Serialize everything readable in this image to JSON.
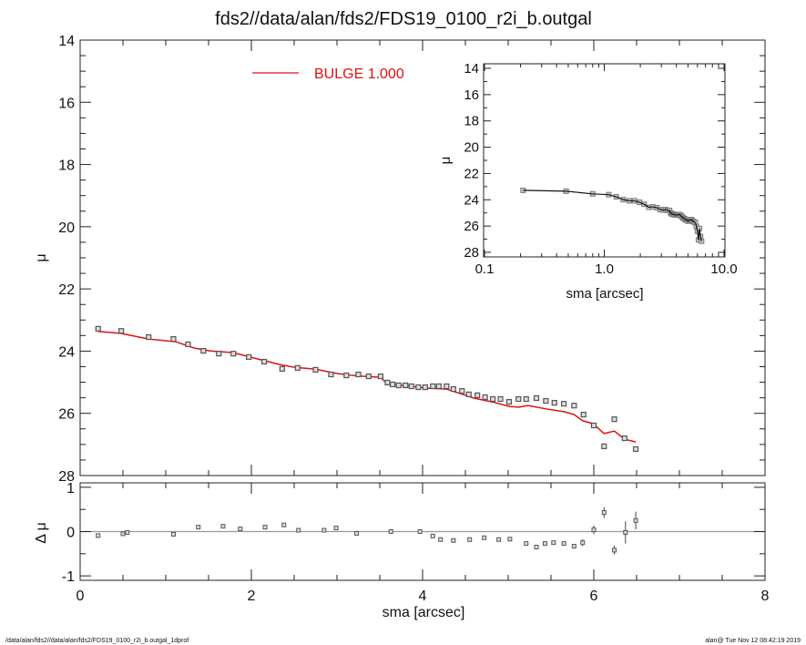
{
  "title": "fds2//data/alan/fds2/FDS19_0100_r2i_b.outgal",
  "footer_left": "/data/alan/fds2//data/alan/fds2/FDS19_0100_r2i_b.outgal_1dprof",
  "footer_right": "alan@  Tue Nov 12 08:42:19 2019",
  "colors": {
    "model": "#e01010",
    "data": "#555555",
    "axes": "#222222",
    "zero_line": "#999999"
  },
  "chart_data": [
    {
      "type": "scatter",
      "panel": "main",
      "xlabel": "sma [arcsec]",
      "ylabel": "μ",
      "xlim": [
        0,
        8
      ],
      "ylim": [
        28,
        14
      ],
      "y_inverted": true,
      "xticks": [
        "0",
        "2",
        "4",
        "6",
        "8"
      ],
      "yticks": [
        "14",
        "16",
        "18",
        "20",
        "22",
        "24",
        "26",
        "28"
      ],
      "legend": {
        "label": "BULGE  1.000",
        "placement": "top-center"
      },
      "series": [
        {
          "name": "BULGE  1.000",
          "kind": "line",
          "color": "#e01010",
          "x": [
            0.21,
            0.48,
            0.8,
            1.12,
            1.33,
            1.51,
            1.79,
            2.04,
            2.33,
            2.5,
            2.75,
            3.0,
            3.18,
            3.32,
            3.51,
            3.56,
            3.64,
            4.06,
            4.28,
            4.38,
            4.6,
            4.81,
            5.02,
            5.13,
            5.23,
            5.45,
            5.66,
            5.77,
            5.87,
            5.99,
            6.12,
            6.24,
            6.36,
            6.49
          ],
          "y": [
            23.37,
            23.43,
            23.61,
            23.7,
            23.9,
            23.99,
            24.05,
            24.23,
            24.43,
            24.52,
            24.58,
            24.72,
            24.78,
            24.81,
            24.84,
            24.98,
            25.07,
            25.19,
            25.22,
            25.31,
            25.51,
            25.63,
            25.78,
            25.8,
            25.75,
            25.86,
            25.95,
            26.04,
            26.24,
            26.33,
            26.65,
            26.57,
            26.83,
            26.92
          ]
        },
        {
          "kind": "squares",
          "color": "#555555",
          "x": [
            0.21,
            0.48,
            0.8,
            1.09,
            1.26,
            1.44,
            1.62,
            1.79,
            1.97,
            2.15,
            2.36,
            2.54,
            2.75,
            2.93,
            3.11,
            3.25,
            3.37,
            3.51,
            3.59,
            3.65,
            3.72,
            3.8,
            3.87,
            3.95,
            4.03,
            4.12,
            4.19,
            4.28,
            4.36,
            4.46,
            4.54,
            4.64,
            4.73,
            4.82,
            4.91,
            5.01,
            5.12,
            5.21,
            5.33,
            5.44,
            5.54,
            5.65,
            5.77,
            5.88,
            6.0,
            6.12,
            6.24,
            6.36,
            6.49
          ],
          "y": [
            23.28,
            23.35,
            23.55,
            23.61,
            23.78,
            23.99,
            24.08,
            24.08,
            24.19,
            24.34,
            24.57,
            24.54,
            24.6,
            24.75,
            24.78,
            24.75,
            24.81,
            24.81,
            25.01,
            25.07,
            25.1,
            25.1,
            25.13,
            25.16,
            25.16,
            25.13,
            25.13,
            25.13,
            25.22,
            25.28,
            25.39,
            25.42,
            25.48,
            25.54,
            25.54,
            25.63,
            25.54,
            25.54,
            25.51,
            25.6,
            25.66,
            25.69,
            25.75,
            26.04,
            26.39,
            27.06,
            26.19,
            26.8,
            27.15
          ]
        }
      ]
    },
    {
      "type": "scatter",
      "panel": "residual",
      "xlabel": "sma [arcsec]",
      "ylabel": "Δ μ",
      "xlim": [
        0,
        8
      ],
      "ylim": [
        -1.1,
        1.1
      ],
      "yticks": [
        "-1",
        "0",
        "1"
      ],
      "series": [
        {
          "kind": "squares-with-errorbars",
          "color": "#555555",
          "x": [
            0.21,
            0.5,
            0.55,
            1.09,
            1.38,
            1.67,
            1.87,
            2.16,
            2.38,
            2.55,
            2.85,
            2.99,
            3.23,
            3.63,
            3.97,
            4.12,
            4.21,
            4.36,
            4.55,
            4.72,
            4.89,
            5.02,
            5.21,
            5.33,
            5.43,
            5.53,
            5.65,
            5.77,
            5.87,
            6.0,
            6.12,
            6.24,
            6.37,
            6.49
          ],
          "y": [
            -0.09,
            -0.05,
            -0.02,
            -0.06,
            0.1,
            0.12,
            0.06,
            0.1,
            0.15,
            0.03,
            0.03,
            0.08,
            -0.04,
            0.0,
            0.0,
            -0.1,
            -0.18,
            -0.2,
            -0.18,
            -0.14,
            -0.18,
            -0.17,
            -0.27,
            -0.35,
            -0.27,
            -0.25,
            -0.27,
            -0.33,
            -0.25,
            0.04,
            0.43,
            -0.42,
            -0.02,
            0.25
          ],
          "err": [
            0,
            0,
            0,
            0,
            0,
            0,
            0,
            0,
            0,
            0,
            0,
            0,
            0,
            0,
            0,
            0,
            0,
            0,
            0,
            0,
            0,
            0,
            0,
            0,
            0,
            0.03,
            0.03,
            0.05,
            0.08,
            0.1,
            0.12,
            0.1,
            0.25,
            0.2
          ]
        }
      ]
    },
    {
      "type": "scatter",
      "panel": "inset",
      "xlabel": "sma [arcsec]",
      "ylabel": "μ",
      "xscale": "log",
      "xlim": [
        0.1,
        10.0
      ],
      "ylim": [
        28,
        14
      ],
      "y_inverted": true,
      "xticks": [
        "0.1",
        "1.0",
        "10.0"
      ],
      "yticks": [
        "14",
        "16",
        "18",
        "20",
        "22",
        "24",
        "26",
        "28"
      ]
    }
  ]
}
